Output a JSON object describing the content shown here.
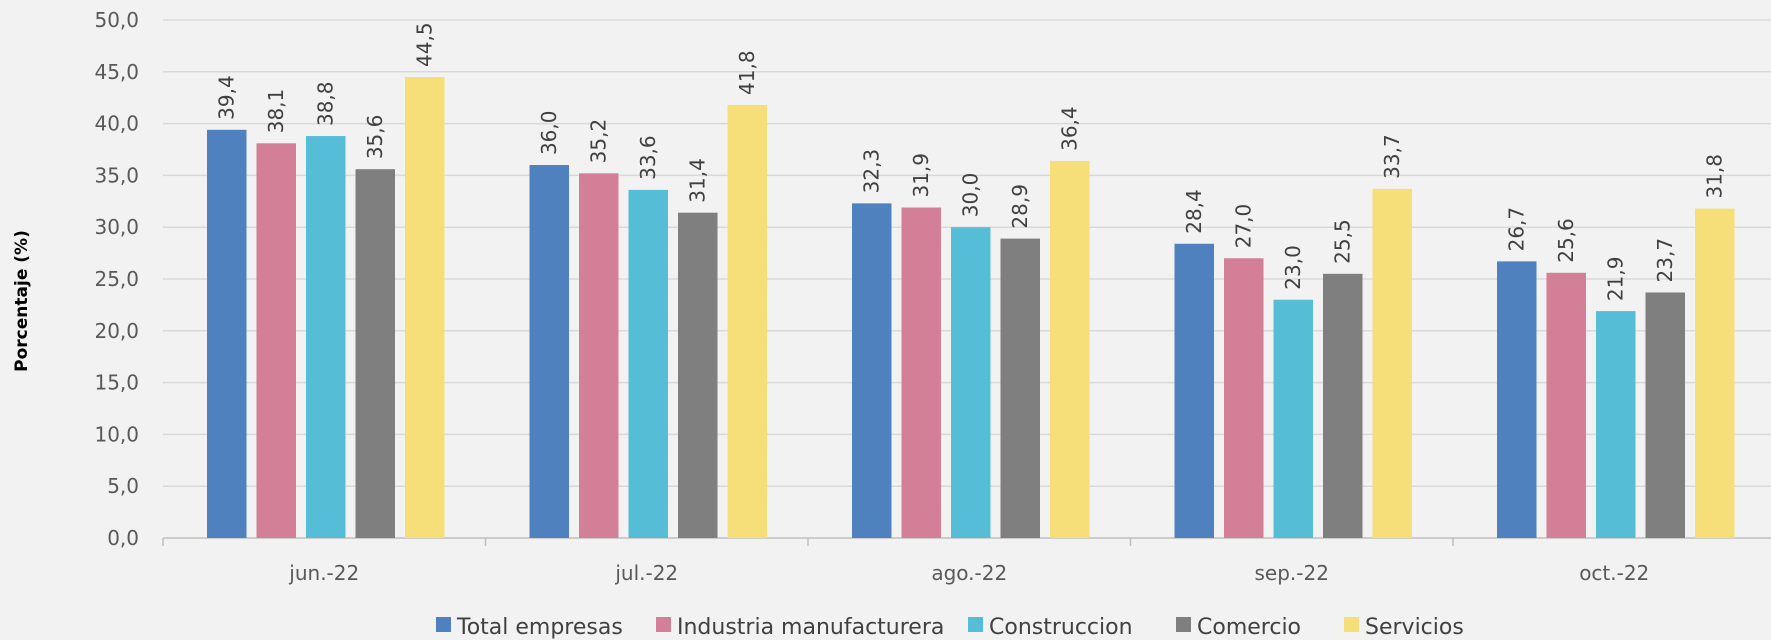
{
  "chart_data": {
    "type": "bar",
    "title": "",
    "xlabel": "",
    "ylabel": "Porcentaje (%)",
    "ylim": [
      0,
      50
    ],
    "ytick_step": 5,
    "ytick_labels": [
      "0,0",
      "5,0",
      "10,0",
      "15,0",
      "20,0",
      "25,0",
      "30,0",
      "35,0",
      "40,0",
      "45,0",
      "50,0"
    ],
    "grid": true,
    "legend_position": "bottom",
    "categories": [
      "jun.-22",
      "jul.-22",
      "ago.-22",
      "sep.-22",
      "oct.-22"
    ],
    "series": [
      {
        "name": "Total empresas",
        "color": "#4e81bd",
        "values": [
          39.4,
          36.0,
          32.3,
          28.4,
          26.7
        ],
        "labels": [
          "39,4",
          "36,0",
          "32,3",
          "28,4",
          "26,7"
        ]
      },
      {
        "name": "Industria manufacturera",
        "color": "#d47f98",
        "values": [
          38.1,
          35.2,
          31.9,
          27.0,
          25.6
        ],
        "labels": [
          "38,1",
          "35,2",
          "31,9",
          "27,0",
          "25,6"
        ]
      },
      {
        "name": "Construccion",
        "color": "#55bed6",
        "values": [
          38.8,
          33.6,
          30.0,
          23.0,
          21.9
        ],
        "labels": [
          "38,8",
          "33,6",
          "30,0",
          "23,0",
          "21,9"
        ]
      },
      {
        "name": "Comercio",
        "color": "#7f7f7f",
        "values": [
          35.6,
          31.4,
          28.9,
          25.5,
          23.7
        ],
        "labels": [
          "35,6",
          "31,4",
          "28,9",
          "25,5",
          "23,7"
        ]
      },
      {
        "name": "Servicios",
        "color": "#f6df78",
        "values": [
          44.5,
          41.8,
          36.4,
          33.7,
          31.8
        ],
        "labels": [
          "44,5",
          "41,8",
          "36,4",
          "33,7",
          "31,8"
        ]
      }
    ]
  }
}
